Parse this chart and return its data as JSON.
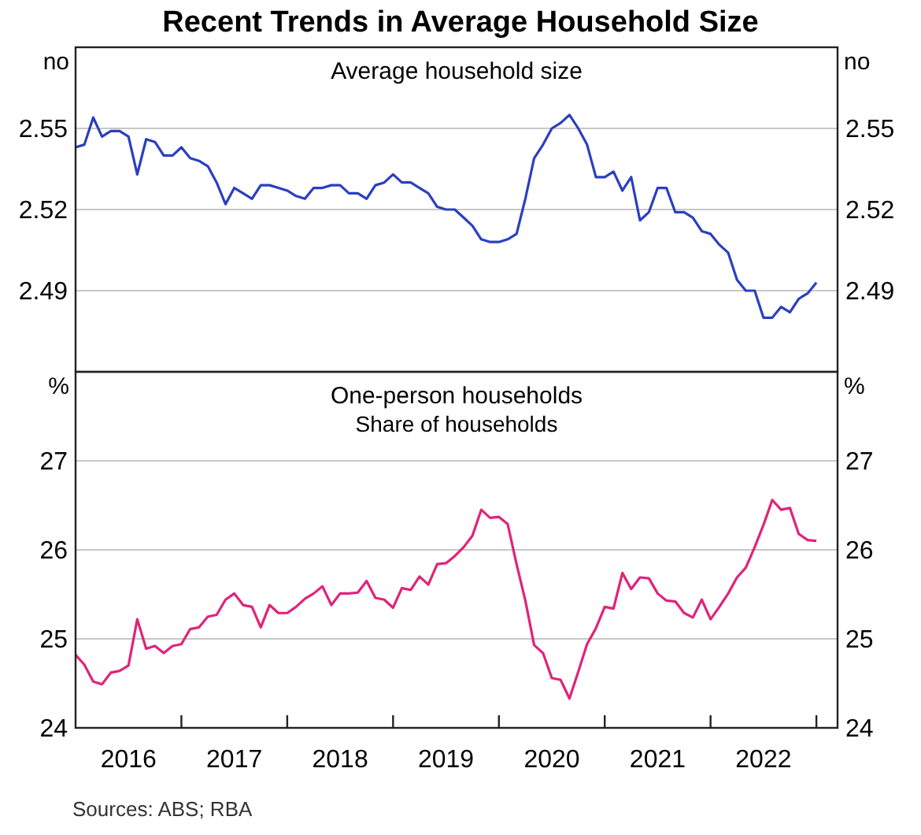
{
  "chart_data": [
    {
      "type": "line",
      "title": "Recent Trends in Average Household Size",
      "subtitle": "Average household size",
      "ylabel": "no",
      "y2label": "no",
      "xlim": [
        2016,
        2023.2
      ],
      "ylim": [
        2.46,
        2.58
      ],
      "yticks": [
        2.49,
        2.52,
        2.55
      ],
      "y2lim": [
        2.46,
        2.58
      ],
      "y2ticks": [
        2.49,
        2.52,
        2.55
      ],
      "grid": "y",
      "tick_labels": "y",
      "line_style": "solid",
      "x": [
        2016,
        2016.083,
        2016.167,
        2016.25,
        2016.333,
        2016.417,
        2016.5,
        2016.583,
        2016.667,
        2016.75,
        2016.833,
        2016.917,
        2017,
        2017.083,
        2017.167,
        2017.25,
        2017.333,
        2017.417,
        2017.5,
        2017.583,
        2017.667,
        2017.75,
        2017.833,
        2017.917,
        2018,
        2018.083,
        2018.167,
        2018.25,
        2018.333,
        2018.417,
        2018.5,
        2018.583,
        2018.667,
        2018.75,
        2018.833,
        2018.917,
        2019,
        2019.083,
        2019.167,
        2019.25,
        2019.333,
        2019.417,
        2019.5,
        2019.583,
        2019.667,
        2019.75,
        2019.833,
        2019.917,
        2020,
        2020.083,
        2020.167,
        2020.25,
        2020.333,
        2020.417,
        2020.5,
        2020.583,
        2020.667,
        2020.75,
        2020.833,
        2020.917,
        2021,
        2021.083,
        2021.167,
        2021.25,
        2021.333,
        2021.417,
        2021.5,
        2021.583,
        2021.667,
        2021.75,
        2021.833,
        2021.917,
        2022,
        2022.083,
        2022.167,
        2022.25,
        2022.333,
        2022.417,
        2022.5,
        2022.583,
        2022.667,
        2022.75,
        2022.833,
        2022.917,
        2023
      ],
      "series": [
        {
          "color": "#2b3fbf",
          "values": [
            2.543,
            2.544,
            2.554,
            2.547,
            2.549,
            2.549,
            2.547,
            2.533,
            2.546,
            2.545,
            2.54,
            2.54,
            2.543,
            2.539,
            2.538,
            2.536,
            2.53,
            2.522,
            2.528,
            2.526,
            2.524,
            2.529,
            2.529,
            2.528,
            2.527,
            2.525,
            2.524,
            2.528,
            2.528,
            2.529,
            2.529,
            2.526,
            2.526,
            2.524,
            2.529,
            2.53,
            2.533,
            2.53,
            2.53,
            2.528,
            2.526,
            2.521,
            2.52,
            2.52,
            2.517,
            2.514,
            2.509,
            2.508,
            2.508,
            2.509,
            2.511,
            2.524,
            2.539,
            2.544,
            2.55,
            2.552,
            2.555,
            2.55,
            2.544,
            2.532,
            2.532,
            2.534,
            2.527,
            2.532,
            2.516,
            2.519,
            2.528,
            2.528,
            2.519,
            2.519,
            2.517,
            2.512,
            2.511,
            2.507,
            2.504,
            2.494,
            2.49,
            2.49,
            2.48,
            2.48,
            2.484,
            2.482,
            2.487,
            2.489,
            2.493
          ]
        }
      ]
    },
    {
      "type": "line",
      "title": "One-person households",
      "subtitle": "Share of households",
      "ylabel": "%",
      "y2label": "%",
      "xlim": [
        2016,
        2023.2
      ],
      "xticks": [
        {
          "value": 2016.5,
          "label": "2016"
        },
        {
          "value": 2017,
          "label": null
        },
        {
          "value": 2017.5,
          "label": "2017"
        },
        {
          "value": 2018,
          "label": null
        },
        {
          "value": 2018.5,
          "label": "2018"
        },
        {
          "value": 2019,
          "label": null
        },
        {
          "value": 2019.5,
          "label": "2019"
        },
        {
          "value": 2020,
          "label": null
        },
        {
          "value": 2020.5,
          "label": "2020"
        },
        {
          "value": 2021,
          "label": null
        },
        {
          "value": 2021.5,
          "label": "2021"
        },
        {
          "value": 2022,
          "label": null
        },
        {
          "value": 2022.5,
          "label": "2022"
        },
        {
          "value": 2023,
          "label": null
        }
      ],
      "ylim": [
        24,
        28
      ],
      "yticks": [
        24,
        25,
        26,
        27
      ],
      "y2lim": [
        24,
        28
      ],
      "y2ticks": [
        24,
        25,
        26,
        27
      ],
      "grid": "y",
      "line_style": "solid",
      "annotations": [
        "Sources: ABS; RBA"
      ],
      "x": [
        2016,
        2016.083,
        2016.167,
        2016.25,
        2016.333,
        2016.417,
        2016.5,
        2016.583,
        2016.667,
        2016.75,
        2016.833,
        2016.917,
        2017,
        2017.083,
        2017.167,
        2017.25,
        2017.333,
        2017.417,
        2017.5,
        2017.583,
        2017.667,
        2017.75,
        2017.833,
        2017.917,
        2018,
        2018.083,
        2018.167,
        2018.25,
        2018.333,
        2018.417,
        2018.5,
        2018.583,
        2018.667,
        2018.75,
        2018.833,
        2018.917,
        2019,
        2019.083,
        2019.167,
        2019.25,
        2019.333,
        2019.417,
        2019.5,
        2019.583,
        2019.667,
        2019.75,
        2019.833,
        2019.917,
        2020,
        2020.083,
        2020.167,
        2020.25,
        2020.333,
        2020.417,
        2020.5,
        2020.583,
        2020.667,
        2020.75,
        2020.833,
        2020.917,
        2021,
        2021.083,
        2021.167,
        2021.25,
        2021.333,
        2021.417,
        2021.5,
        2021.583,
        2021.667,
        2021.75,
        2021.833,
        2021.917,
        2022,
        2022.083,
        2022.167,
        2022.25,
        2022.333,
        2022.417,
        2022.5,
        2022.583,
        2022.667,
        2022.75,
        2022.833,
        2022.917,
        2023
      ],
      "series": [
        {
          "color": "#e0237a",
          "values": [
            24.82,
            24.71,
            24.52,
            24.49,
            24.62,
            24.64,
            24.7,
            25.22,
            24.89,
            24.92,
            24.84,
            24.92,
            24.94,
            25.11,
            25.13,
            25.25,
            25.27,
            25.44,
            25.51,
            25.38,
            25.36,
            25.13,
            25.38,
            25.29,
            25.29,
            25.36,
            25.45,
            25.51,
            25.59,
            25.38,
            25.51,
            25.51,
            25.52,
            25.65,
            25.46,
            25.44,
            25.35,
            25.57,
            25.55,
            25.7,
            25.61,
            25.84,
            25.85,
            25.93,
            26.03,
            26.16,
            26.45,
            26.36,
            26.37,
            26.29,
            25.84,
            25.43,
            24.93,
            24.84,
            24.56,
            24.54,
            24.33,
            24.63,
            24.94,
            25.12,
            25.36,
            25.34,
            25.74,
            25.56,
            25.69,
            25.68,
            25.51,
            25.43,
            25.42,
            25.29,
            25.24,
            25.44,
            25.22,
            25.36,
            25.51,
            25.69,
            25.8,
            26.03,
            26.28,
            26.56,
            26.45,
            26.47,
            26.18,
            26.11,
            26.1
          ]
        }
      ]
    }
  ]
}
